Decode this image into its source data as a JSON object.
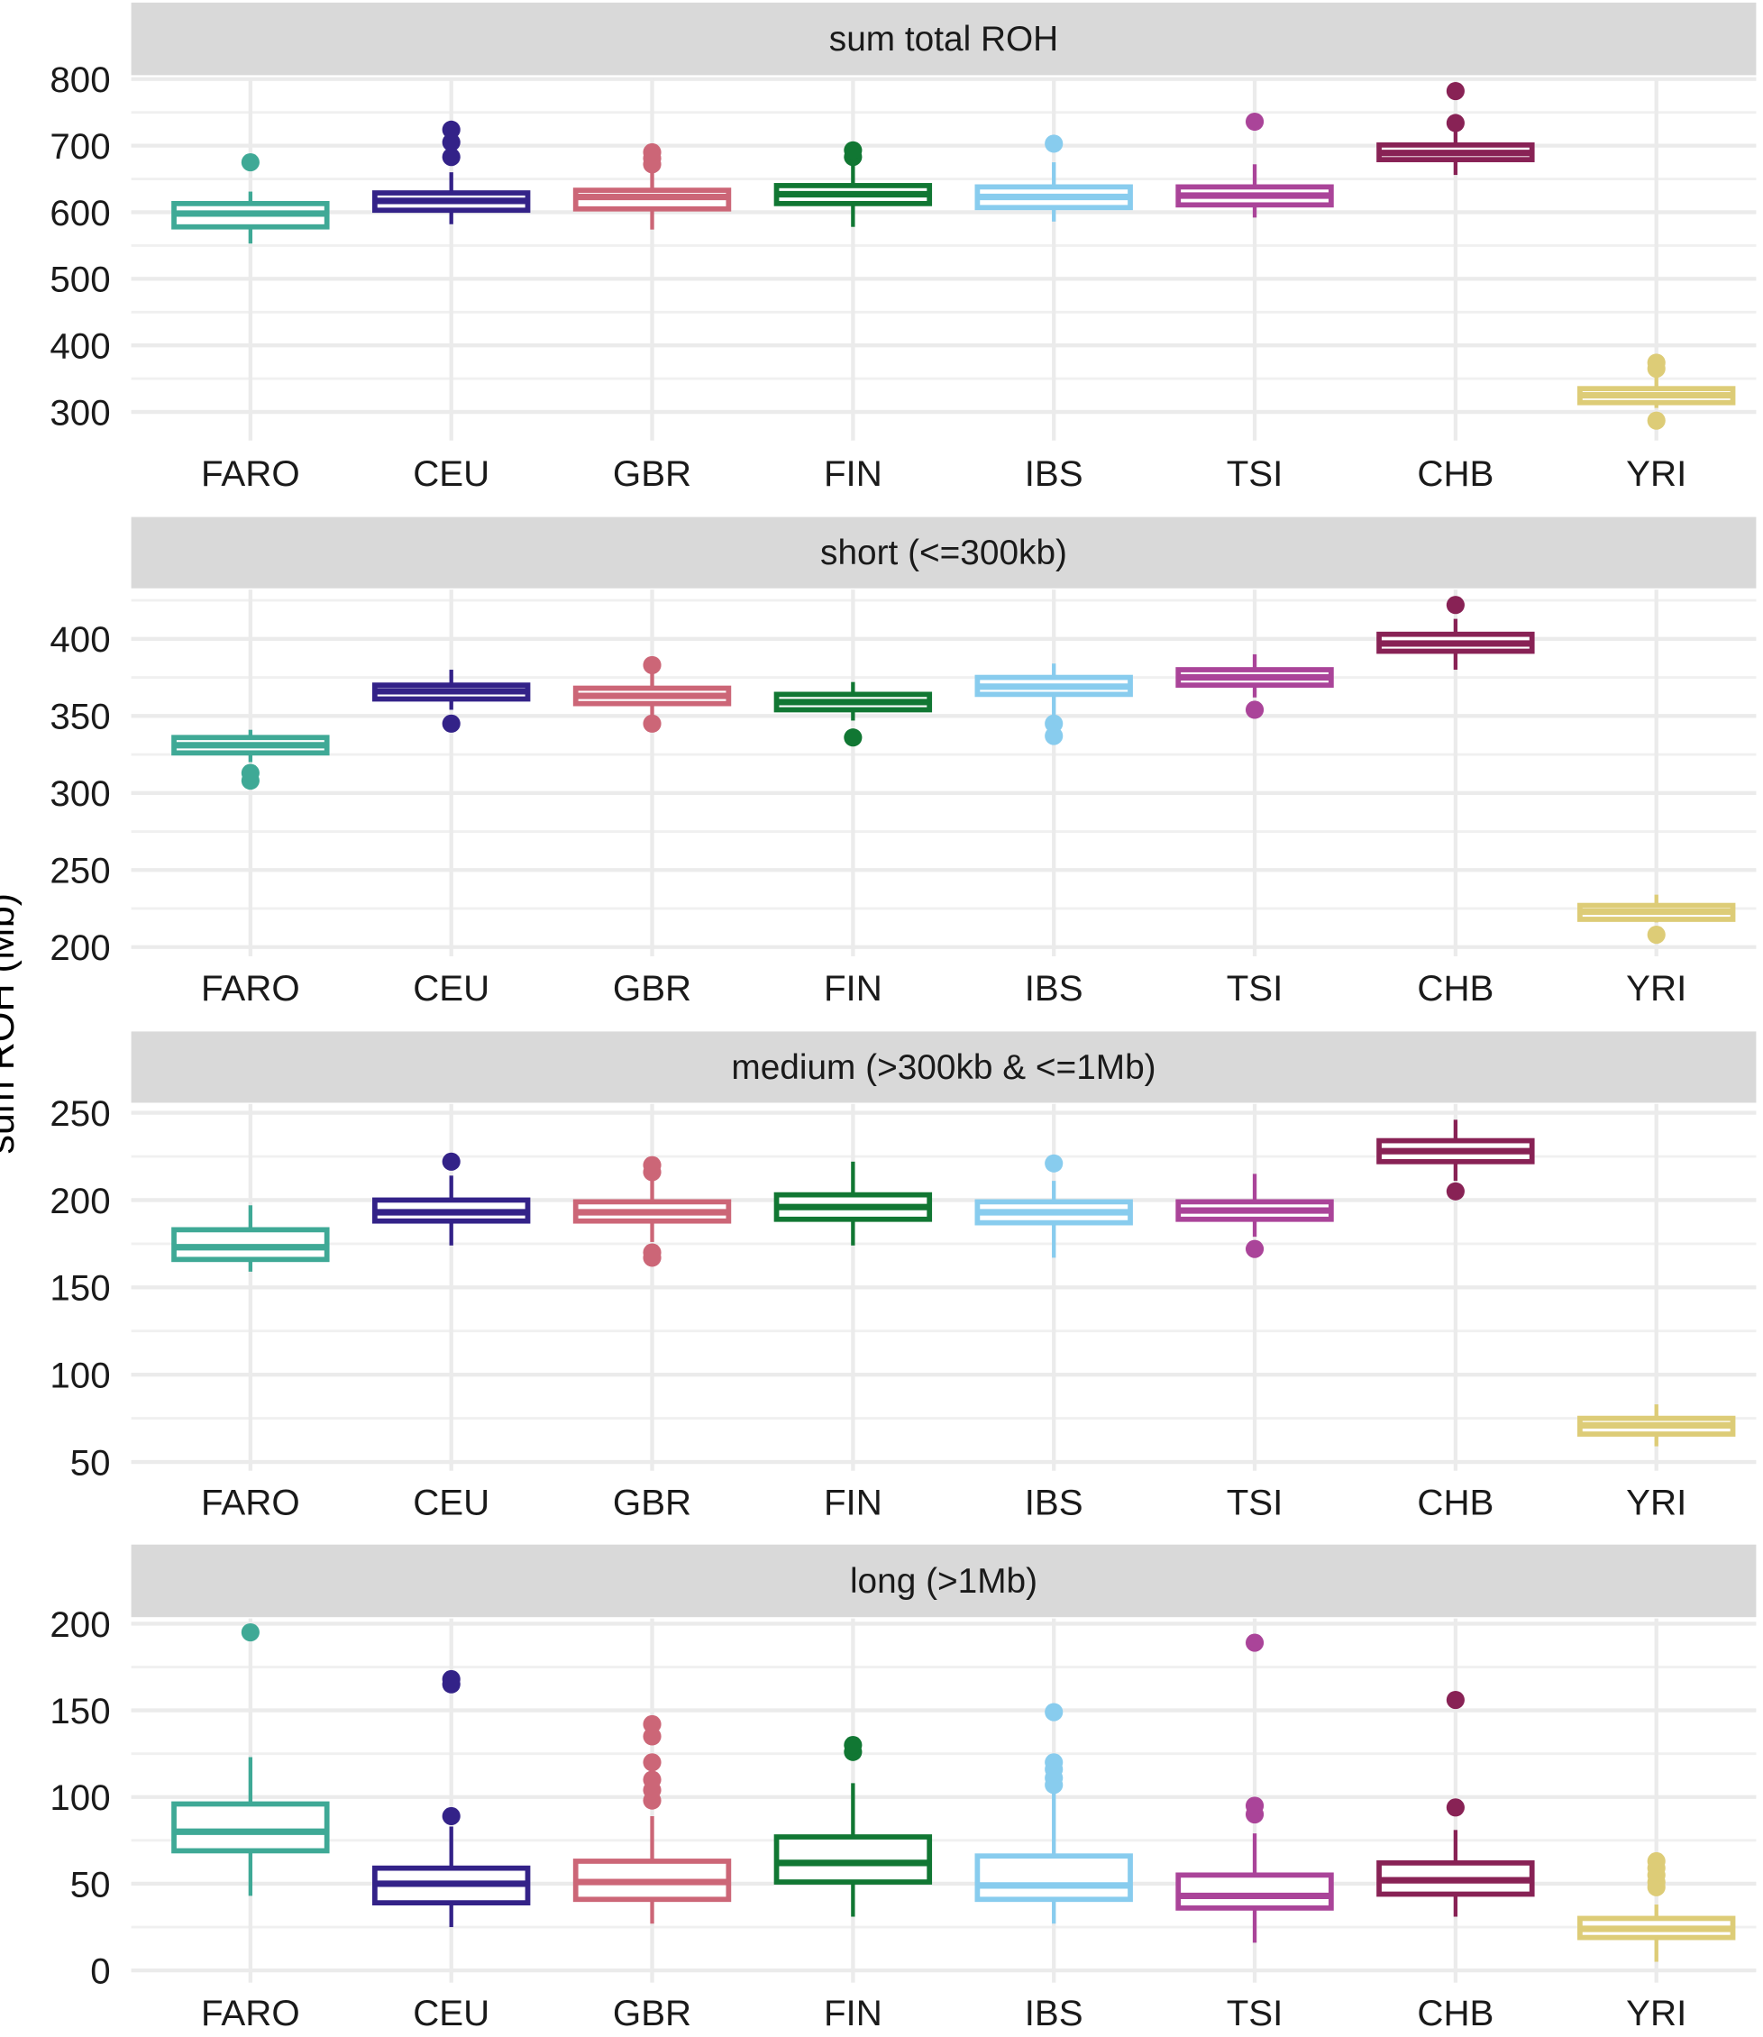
{
  "chart_data": {
    "type": "boxplot",
    "ylabel": "sum ROH (Mb)",
    "categories": [
      "FARO",
      "CEU",
      "GBR",
      "FIN",
      "IBS",
      "TSI",
      "CHB",
      "YRI"
    ],
    "colors": {
      "FARO": "#3fa996",
      "CEU": "#332288",
      "GBR": "#cc6677",
      "FIN": "#117733",
      "IBS": "#88ccee",
      "TSI": "#aa4499",
      "CHB": "#882255",
      "YRI": "#ddcc77"
    },
    "grid": true,
    "panels": [
      {
        "title": "sum total ROH",
        "ylim": [
          257,
          802
        ],
        "yticks": [
          300,
          400,
          500,
          600,
          700,
          800
        ],
        "boxes": [
          {
            "lo": 553,
            "q1": 578,
            "med": 598,
            "q3": 613,
            "hi": 631,
            "out": [
              675
            ]
          },
          {
            "lo": 582,
            "q1": 603,
            "med": 617,
            "q3": 629,
            "hi": 660,
            "out": [
              683,
              705,
              724
            ]
          },
          {
            "lo": 574,
            "q1": 605,
            "med": 623,
            "q3": 633,
            "hi": 666,
            "out": [
              672,
              681,
              690
            ]
          },
          {
            "lo": 578,
            "q1": 613,
            "med": 627,
            "q3": 640,
            "hi": 670,
            "out": [
              683,
              693
            ]
          },
          {
            "lo": 586,
            "q1": 607,
            "med": 623,
            "q3": 638,
            "hi": 675,
            "out": [
              703
            ]
          },
          {
            "lo": 592,
            "q1": 611,
            "med": 625,
            "q3": 638,
            "hi": 672,
            "out": [
              736
            ]
          },
          {
            "lo": 656,
            "q1": 679,
            "med": 689,
            "q3": 701,
            "hi": 724,
            "out": [
              734,
              782
            ]
          },
          {
            "lo": 306,
            "q1": 314,
            "med": 325,
            "q3": 335,
            "hi": 354,
            "out": [
              287,
              365,
              374
            ]
          }
        ]
      },
      {
        "title": "short (<=300kb)",
        "ylim": [
          194,
          432
        ],
        "yticks": [
          200,
          250,
          300,
          350,
          400
        ],
        "boxes": [
          {
            "lo": 320,
            "q1": 326,
            "med": 331,
            "q3": 336,
            "hi": 341,
            "out": [
              308,
              313
            ]
          },
          {
            "lo": 354,
            "q1": 361,
            "med": 366,
            "q3": 370,
            "hi": 380,
            "out": [
              345
            ]
          },
          {
            "lo": 350,
            "q1": 358,
            "med": 363,
            "q3": 368,
            "hi": 379,
            "out": [
              345,
              383
            ]
          },
          {
            "lo": 347,
            "q1": 354,
            "med": 359,
            "q3": 364,
            "hi": 372,
            "out": [
              336
            ]
          },
          {
            "lo": 350,
            "q1": 364,
            "med": 369,
            "q3": 375,
            "hi": 384,
            "out": [
              337,
              345
            ]
          },
          {
            "lo": 362,
            "q1": 370,
            "med": 375,
            "q3": 380,
            "hi": 390,
            "out": [
              354
            ]
          },
          {
            "lo": 380,
            "q1": 392,
            "med": 397,
            "q3": 403,
            "hi": 413,
            "out": [
              422
            ]
          },
          {
            "lo": 216,
            "q1": 218,
            "med": 223,
            "q3": 227,
            "hi": 234,
            "out": [
              208
            ]
          }
        ]
      },
      {
        "title": "medium (>300kb & <=1Mb)",
        "ylim": [
          45,
          255
        ],
        "yticks": [
          50,
          100,
          150,
          200,
          250
        ],
        "boxes": [
          {
            "lo": 159,
            "q1": 166,
            "med": 173,
            "q3": 183,
            "hi": 197,
            "out": []
          },
          {
            "lo": 174,
            "q1": 188,
            "med": 193,
            "q3": 200,
            "hi": 214,
            "out": [
              222
            ]
          },
          {
            "lo": 176,
            "q1": 188,
            "med": 193,
            "q3": 199,
            "hi": 212,
            "out": [
              167,
              170,
              216,
              220
            ]
          },
          {
            "lo": 174,
            "q1": 189,
            "med": 196,
            "q3": 203,
            "hi": 222,
            "out": []
          },
          {
            "lo": 167,
            "q1": 187,
            "med": 193,
            "q3": 199,
            "hi": 211,
            "out": [
              221
            ]
          },
          {
            "lo": 179,
            "q1": 189,
            "med": 194,
            "q3": 199,
            "hi": 215,
            "out": [
              172
            ]
          },
          {
            "lo": 211,
            "q1": 222,
            "med": 228,
            "q3": 234,
            "hi": 246,
            "out": [
              205
            ]
          },
          {
            "lo": 59,
            "q1": 66,
            "med": 71,
            "q3": 75,
            "hi": 83,
            "out": []
          }
        ]
      },
      {
        "title": "long (>1Mb)",
        "ylim": [
          -7,
          203
        ],
        "yticks": [
          0,
          50,
          100,
          150,
          200
        ],
        "boxes": [
          {
            "lo": 43,
            "q1": 69,
            "med": 80,
            "q3": 96,
            "hi": 123,
            "out": [
              195
            ]
          },
          {
            "lo": 25,
            "q1": 39,
            "med": 50,
            "q3": 59,
            "hi": 83,
            "out": [
              89,
              165,
              168
            ]
          },
          {
            "lo": 27,
            "q1": 41,
            "med": 51,
            "q3": 63,
            "hi": 89,
            "out": [
              98,
              104,
              110,
              120,
              135,
              142
            ]
          },
          {
            "lo": 31,
            "q1": 51,
            "med": 62,
            "q3": 77,
            "hi": 108,
            "out": [
              126,
              130
            ]
          },
          {
            "lo": 27,
            "q1": 41,
            "med": 49,
            "q3": 66,
            "hi": 113,
            "out": [
              107,
              111,
              116,
              120,
              149
            ]
          },
          {
            "lo": 16,
            "q1": 36,
            "med": 43,
            "q3": 55,
            "hi": 79,
            "out": [
              90,
              95,
              189
            ]
          },
          {
            "lo": 31,
            "q1": 44,
            "med": 52,
            "q3": 62,
            "hi": 81,
            "out": [
              94,
              156
            ]
          },
          {
            "lo": 5,
            "q1": 19,
            "med": 24,
            "q3": 30,
            "hi": 38,
            "out": [
              48,
              51,
              55,
              59,
              63
            ]
          }
        ]
      }
    ]
  }
}
